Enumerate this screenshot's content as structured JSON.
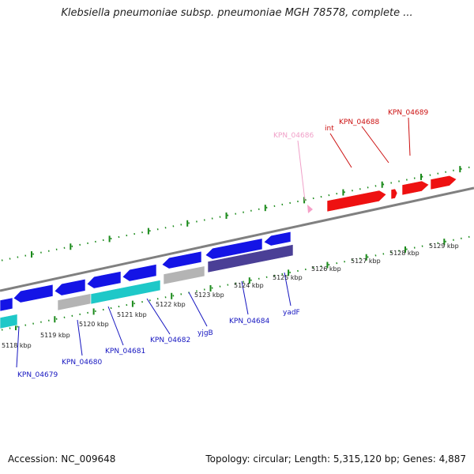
{
  "title": "Klebsiella pneumoniae subsp. pneumoniae MGH 78578, complete ...",
  "footer": {
    "accession": "Accession: NC_009648",
    "summary": "Topology: circular; Length: 5,315,120 bp; Genes: 4,887"
  },
  "colors": {
    "backbone": "#808080",
    "tick": "#1a8a1a",
    "blue": "#1414e6",
    "cyan": "#1ec8c8",
    "grey": "#b4b4b4",
    "navy": "#4a3f96",
    "red": "#ee1111",
    "pink": "#f5a0c8",
    "label_blue": "#1515c0",
    "label_red": "#cc1010",
    "label_pink": "#f0a0c8"
  },
  "tick_labels": [
    "5118 kbp",
    "5119 kbp",
    "5120 kbp",
    "5121 kbp",
    "5122 kbp",
    "5123 kbp",
    "5124 kbp",
    "5125 kbp",
    "5126 kbp",
    "5127 kbp",
    "5128 kbp",
    "5129 kbp"
  ],
  "gene_labels": {
    "kpn_04679": "KPN_04679",
    "kpn_04680": "KPN_04680",
    "kpn_04681": "KPN_04681",
    "kpn_04682": "KPN_04682",
    "yjgb": "yjgB",
    "kpn_04684": "KPN_04684",
    "yadf": "yadF",
    "kpn_04686": "KPN_04686",
    "int": "int",
    "kpn_04688": "KPN_04688",
    "kpn_04689": "KPN_04689"
  }
}
